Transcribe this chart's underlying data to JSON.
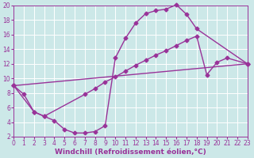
{
  "background_color": "#cce8e8",
  "grid_color": "#ffffff",
  "line_color": "#993399",
  "marker": "D",
  "markersize": 2.5,
  "linewidth": 1.0,
  "xlabel": "Windchill (Refroidissement éolien,°C)",
  "xlabel_fontsize": 6.5,
  "tick_fontsize": 5.5,
  "xlim": [
    0,
    23
  ],
  "ylim": [
    2,
    20
  ],
  "yticks": [
    2,
    4,
    6,
    8,
    10,
    12,
    14,
    16,
    18,
    20
  ],
  "xticks": [
    0,
    1,
    2,
    3,
    4,
    5,
    6,
    7,
    8,
    9,
    10,
    11,
    12,
    13,
    14,
    15,
    16,
    17,
    18,
    19,
    20,
    21,
    22,
    23
  ],
  "curve1_x": [
    0,
    1,
    2,
    3,
    4,
    5,
    6,
    7,
    8,
    9,
    10,
    11,
    12,
    13,
    14,
    15,
    16,
    17,
    18,
    23
  ],
  "curve1_y": [
    9.0,
    7.8,
    5.4,
    4.8,
    4.2,
    3.0,
    2.5,
    2.5,
    2.7,
    3.5,
    12.8,
    15.5,
    17.6,
    18.9,
    19.3,
    19.5,
    20.1,
    18.8,
    16.8,
    12.0
  ],
  "curve2_x": [
    0,
    2,
    3,
    7,
    8,
    9,
    10,
    11,
    12,
    13,
    14,
    15,
    16,
    17,
    18,
    19,
    20,
    21,
    23
  ],
  "curve2_y": [
    9.0,
    5.4,
    4.8,
    7.8,
    8.6,
    9.5,
    10.2,
    11.0,
    11.8,
    12.5,
    13.2,
    13.8,
    14.5,
    15.2,
    15.8,
    10.5,
    12.2,
    12.8,
    12.0
  ],
  "line3_x": [
    0,
    23
  ],
  "line3_y": [
    9.0,
    12.0
  ]
}
